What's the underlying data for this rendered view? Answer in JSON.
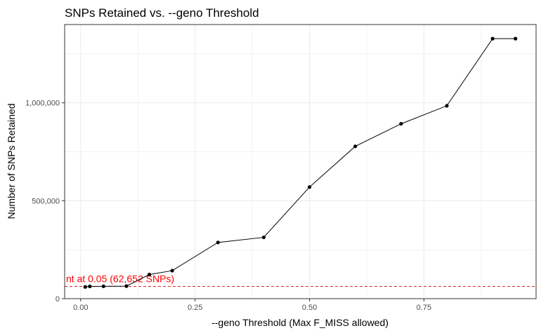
{
  "chart_data": {
    "type": "line",
    "title": "SNPs Retained vs. --geno Threshold",
    "xlabel": "--geno Threshold (Max F_MISS allowed)",
    "ylabel": "Number of SNPs Retained",
    "xlim": [
      -0.035,
      0.995
    ],
    "ylim": [
      0,
      1400000
    ],
    "x_ticks": [
      0.0,
      0.25,
      0.5,
      0.75
    ],
    "x_tick_labels": [
      "0.00",
      "0.25",
      "0.50",
      "0.75"
    ],
    "y_ticks": [
      0,
      500000,
      1000000
    ],
    "y_tick_labels": [
      "0",
      "500,000",
      "1,000,000"
    ],
    "grid": true,
    "series": [
      {
        "x": [
          0.01,
          0.02,
          0.05,
          0.1,
          0.15,
          0.2,
          0.3,
          0.4,
          0.5,
          0.6,
          0.7,
          0.8,
          0.9,
          0.95
        ],
        "y": [
          60000,
          62652,
          63000,
          64000,
          123000,
          143000,
          287000,
          313000,
          570000,
          778000,
          893000,
          985000,
          1328000,
          1328000
        ]
      }
    ],
    "reference_line": {
      "y": 62652,
      "color": "#d62728",
      "label": "nt at 0.05 (62,652 SNPs)"
    },
    "colors": {
      "line": "#000000",
      "points": "#000000",
      "grid": "#ebebeb",
      "panel_border": "#333333",
      "annotation": "#ff0000"
    }
  }
}
